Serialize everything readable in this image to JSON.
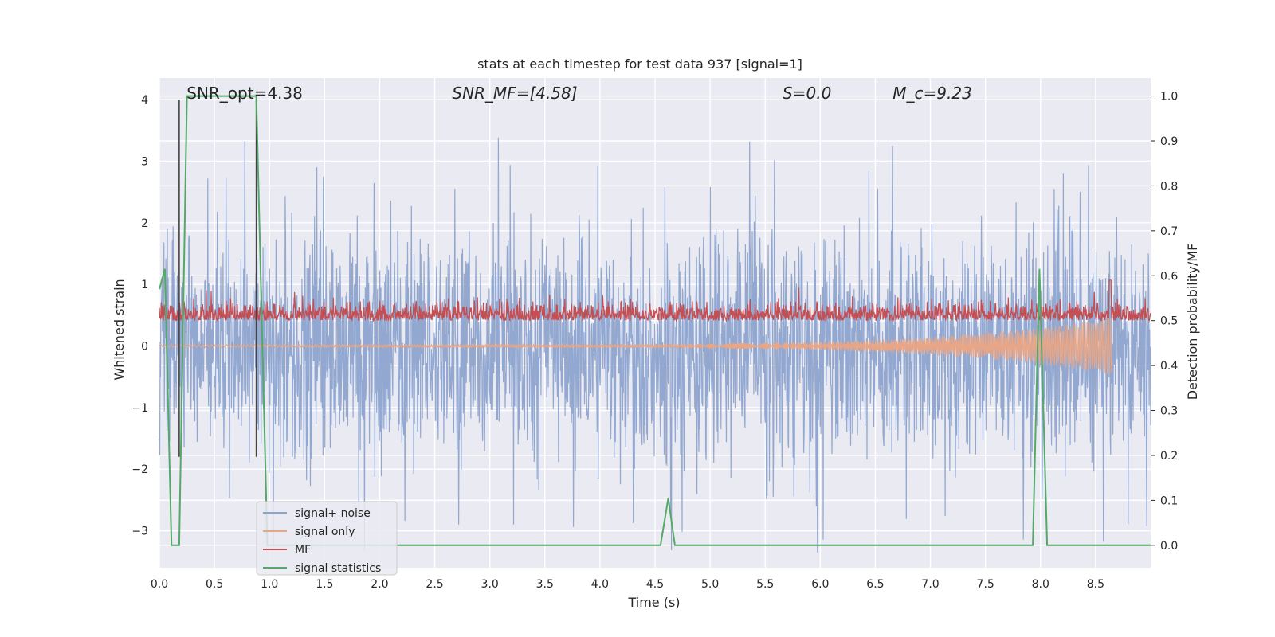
{
  "chart_data": {
    "type": "line",
    "title": "stats at each timestep for test data 937 [signal=1]",
    "xlabel": "Time (s)",
    "ylabel_left": "Whitened strain",
    "ylabel_right": "Detection probability/MF",
    "xlim": [
      0.0,
      9.0
    ],
    "ylim_left": [
      -3.6,
      4.35
    ],
    "ylim_right": [
      -0.05,
      1.04
    ],
    "xticks": [
      0.0,
      0.5,
      1.0,
      1.5,
      2.0,
      2.5,
      3.0,
      3.5,
      4.0,
      4.5,
      5.0,
      5.5,
      6.0,
      6.5,
      7.0,
      7.5,
      8.0,
      8.5
    ],
    "xtick_labels": [
      "0.0",
      "0.5",
      "1.0",
      "1.5",
      "2.0",
      "2.5",
      "3.0",
      "3.5",
      "4.0",
      "4.5",
      "5.0",
      "5.5",
      "6.0",
      "6.5",
      "7.0",
      "7.5",
      "8.0",
      "8.5"
    ],
    "yticks_left": [
      -3,
      -2,
      -1,
      0,
      1,
      2,
      3,
      4
    ],
    "ytick_labels_left": [
      "−3",
      "−2",
      "−1",
      "0",
      "1",
      "2",
      "3",
      "4"
    ],
    "yticks_right": [
      0.0,
      0.1,
      0.2,
      0.3,
      0.4,
      0.5,
      0.6,
      0.7,
      0.8,
      0.9,
      1.0
    ],
    "ytick_labels_right": [
      "0.0",
      "0.1",
      "0.2",
      "0.3",
      "0.4",
      "0.5",
      "0.6",
      "0.7",
      "0.8",
      "0.9",
      "1.0"
    ],
    "annotations": [
      {
        "id": "snr-opt",
        "text": "SNR_opt=4.38",
        "x": 0.19,
        "italic": false
      },
      {
        "id": "snr-mf",
        "text": "SNR_MF=[4.58]",
        "x": 2.6,
        "italic": true
      },
      {
        "id": "s-value",
        "text": "S=0.0",
        "x": 5.6,
        "italic": true
      },
      {
        "id": "mc-value",
        "text": "M_c=9.23",
        "x": 6.6,
        "italic": true
      }
    ],
    "vertical_lines": [
      0.18,
      0.88
    ],
    "series": [
      {
        "name": "signal+ noise",
        "axis": "left",
        "color": "#8da4cf",
        "description": "whitened noise band, roughly -2 to 2.5 with spikes up to 4.0 and down to -3.3",
        "envelope": [
          -1.8,
          1.8
        ]
      },
      {
        "name": "signal only",
        "axis": "left",
        "color": "#e8a687",
        "description": "chirp growing from ~0 to about -0.6/+0.3 amplitude, ending near 8.65 s",
        "end_time": 8.65
      },
      {
        "name": "MF",
        "axis": "right",
        "color": "#c44e52",
        "description": "matched filter output around 0.48 to 0.55, peak ~0.59 near 8.63 s",
        "level": 0.5
      },
      {
        "name": "signal statistics",
        "axis": "right",
        "color": "#55a868",
        "x": [
          0.0,
          0.05,
          0.11,
          0.18,
          0.25,
          0.88,
          0.98,
          1.05,
          4.55,
          4.62,
          4.68,
          7.93,
          7.99,
          8.06,
          9.0
        ],
        "y": [
          0.57,
          0.615,
          0.0,
          0.0,
          1.0,
          1.0,
          0.0,
          0.0,
          0.0,
          0.105,
          0.0,
          0.0,
          0.615,
          0.0,
          0.0
        ]
      }
    ],
    "legend": {
      "placement": "lower-left",
      "entries": [
        "signal+ noise",
        "signal only",
        "MF",
        "signal statistics"
      ]
    },
    "grid": true
  }
}
